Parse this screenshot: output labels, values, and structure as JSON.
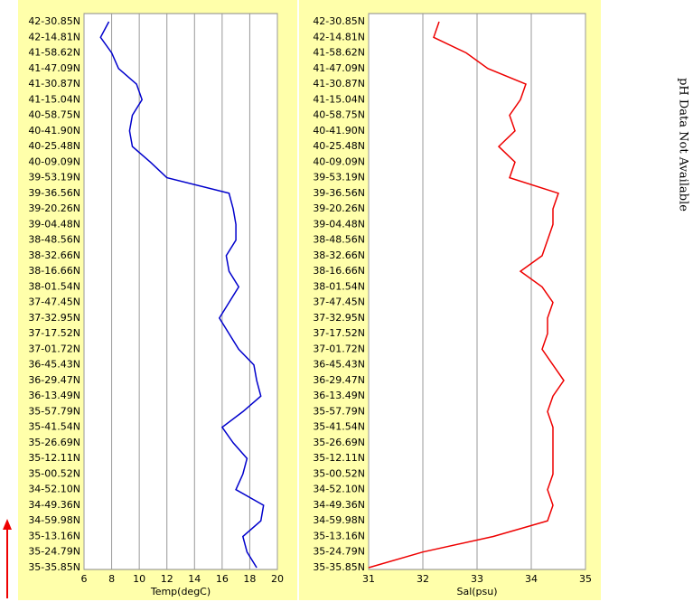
{
  "chart_data": [
    {
      "type": "line",
      "orientation": "horizontal",
      "xlabel": "Temp(degC)",
      "xlim": [
        6,
        20
      ],
      "xticks": [
        6,
        8,
        10,
        12,
        14,
        16,
        18,
        20
      ],
      "grid": true,
      "categories": [
        "42-30.85N",
        "42-14.81N",
        "41-58.62N",
        "41-47.09N",
        "41-30.87N",
        "41-15.04N",
        "40-58.75N",
        "40-41.90N",
        "40-25.48N",
        "40-09.09N",
        "39-53.19N",
        "39-36.56N",
        "39-20.26N",
        "39-04.48N",
        "38-48.56N",
        "38-32.66N",
        "38-16.66N",
        "38-01.54N",
        "37-47.45N",
        "37-32.95N",
        "37-17.52N",
        "37-01.72N",
        "36-45.43N",
        "36-29.47N",
        "36-13.49N",
        "35-57.79N",
        "35-41.54N",
        "35-26.69N",
        "35-12.11N",
        "35-00.52N",
        "34-52.10N",
        "34-49.36N",
        "34-59.98N",
        "35-13.16N",
        "35-24.79N",
        "35-35.85N"
      ],
      "series": [
        {
          "color": "#0000cc",
          "values": [
            7.8,
            7.2,
            8.0,
            8.5,
            9.8,
            10.2,
            9.5,
            9.3,
            9.5,
            10.8,
            12.0,
            16.5,
            16.8,
            17.0,
            17.0,
            16.3,
            16.5,
            17.2,
            16.5,
            15.8,
            16.5,
            17.2,
            18.3,
            18.5,
            18.8,
            17.5,
            16.0,
            16.8,
            17.8,
            17.5,
            17.0,
            19.0,
            18.8,
            17.5,
            17.8,
            18.5
          ]
        }
      ]
    },
    {
      "type": "line",
      "orientation": "horizontal",
      "xlabel": "Sal(psu)",
      "xlim": [
        31,
        35
      ],
      "xticks": [
        31,
        32,
        33,
        34,
        35
      ],
      "grid": true,
      "categories": [
        "42-30.85N",
        "42-14.81N",
        "41-58.62N",
        "41-47.09N",
        "41-30.87N",
        "41-15.04N",
        "40-58.75N",
        "40-41.90N",
        "40-25.48N",
        "40-09.09N",
        "39-53.19N",
        "39-36.56N",
        "39-20.26N",
        "39-04.48N",
        "38-48.56N",
        "38-32.66N",
        "38-16.66N",
        "38-01.54N",
        "37-47.45N",
        "37-32.95N",
        "37-17.52N",
        "37-01.72N",
        "36-45.43N",
        "36-29.47N",
        "36-13.49N",
        "35-57.79N",
        "35-41.54N",
        "35-26.69N",
        "35-12.11N",
        "35-00.52N",
        "34-52.10N",
        "34-49.36N",
        "34-59.98N",
        "35-13.16N",
        "35-24.79N",
        "35-35.85N"
      ],
      "series": [
        {
          "color": "#ee0000",
          "values": [
            32.3,
            32.2,
            32.8,
            33.2,
            33.9,
            33.8,
            33.6,
            33.7,
            33.4,
            33.7,
            33.6,
            34.5,
            34.4,
            34.4,
            34.3,
            34.2,
            33.8,
            34.2,
            34.4,
            34.3,
            34.3,
            34.2,
            34.4,
            34.6,
            34.4,
            34.3,
            34.4,
            34.4,
            34.4,
            34.4,
            34.3,
            34.4,
            34.3,
            33.3,
            32.0,
            31.0
          ]
        }
      ]
    }
  ],
  "note": "pH Data Not Available"
}
